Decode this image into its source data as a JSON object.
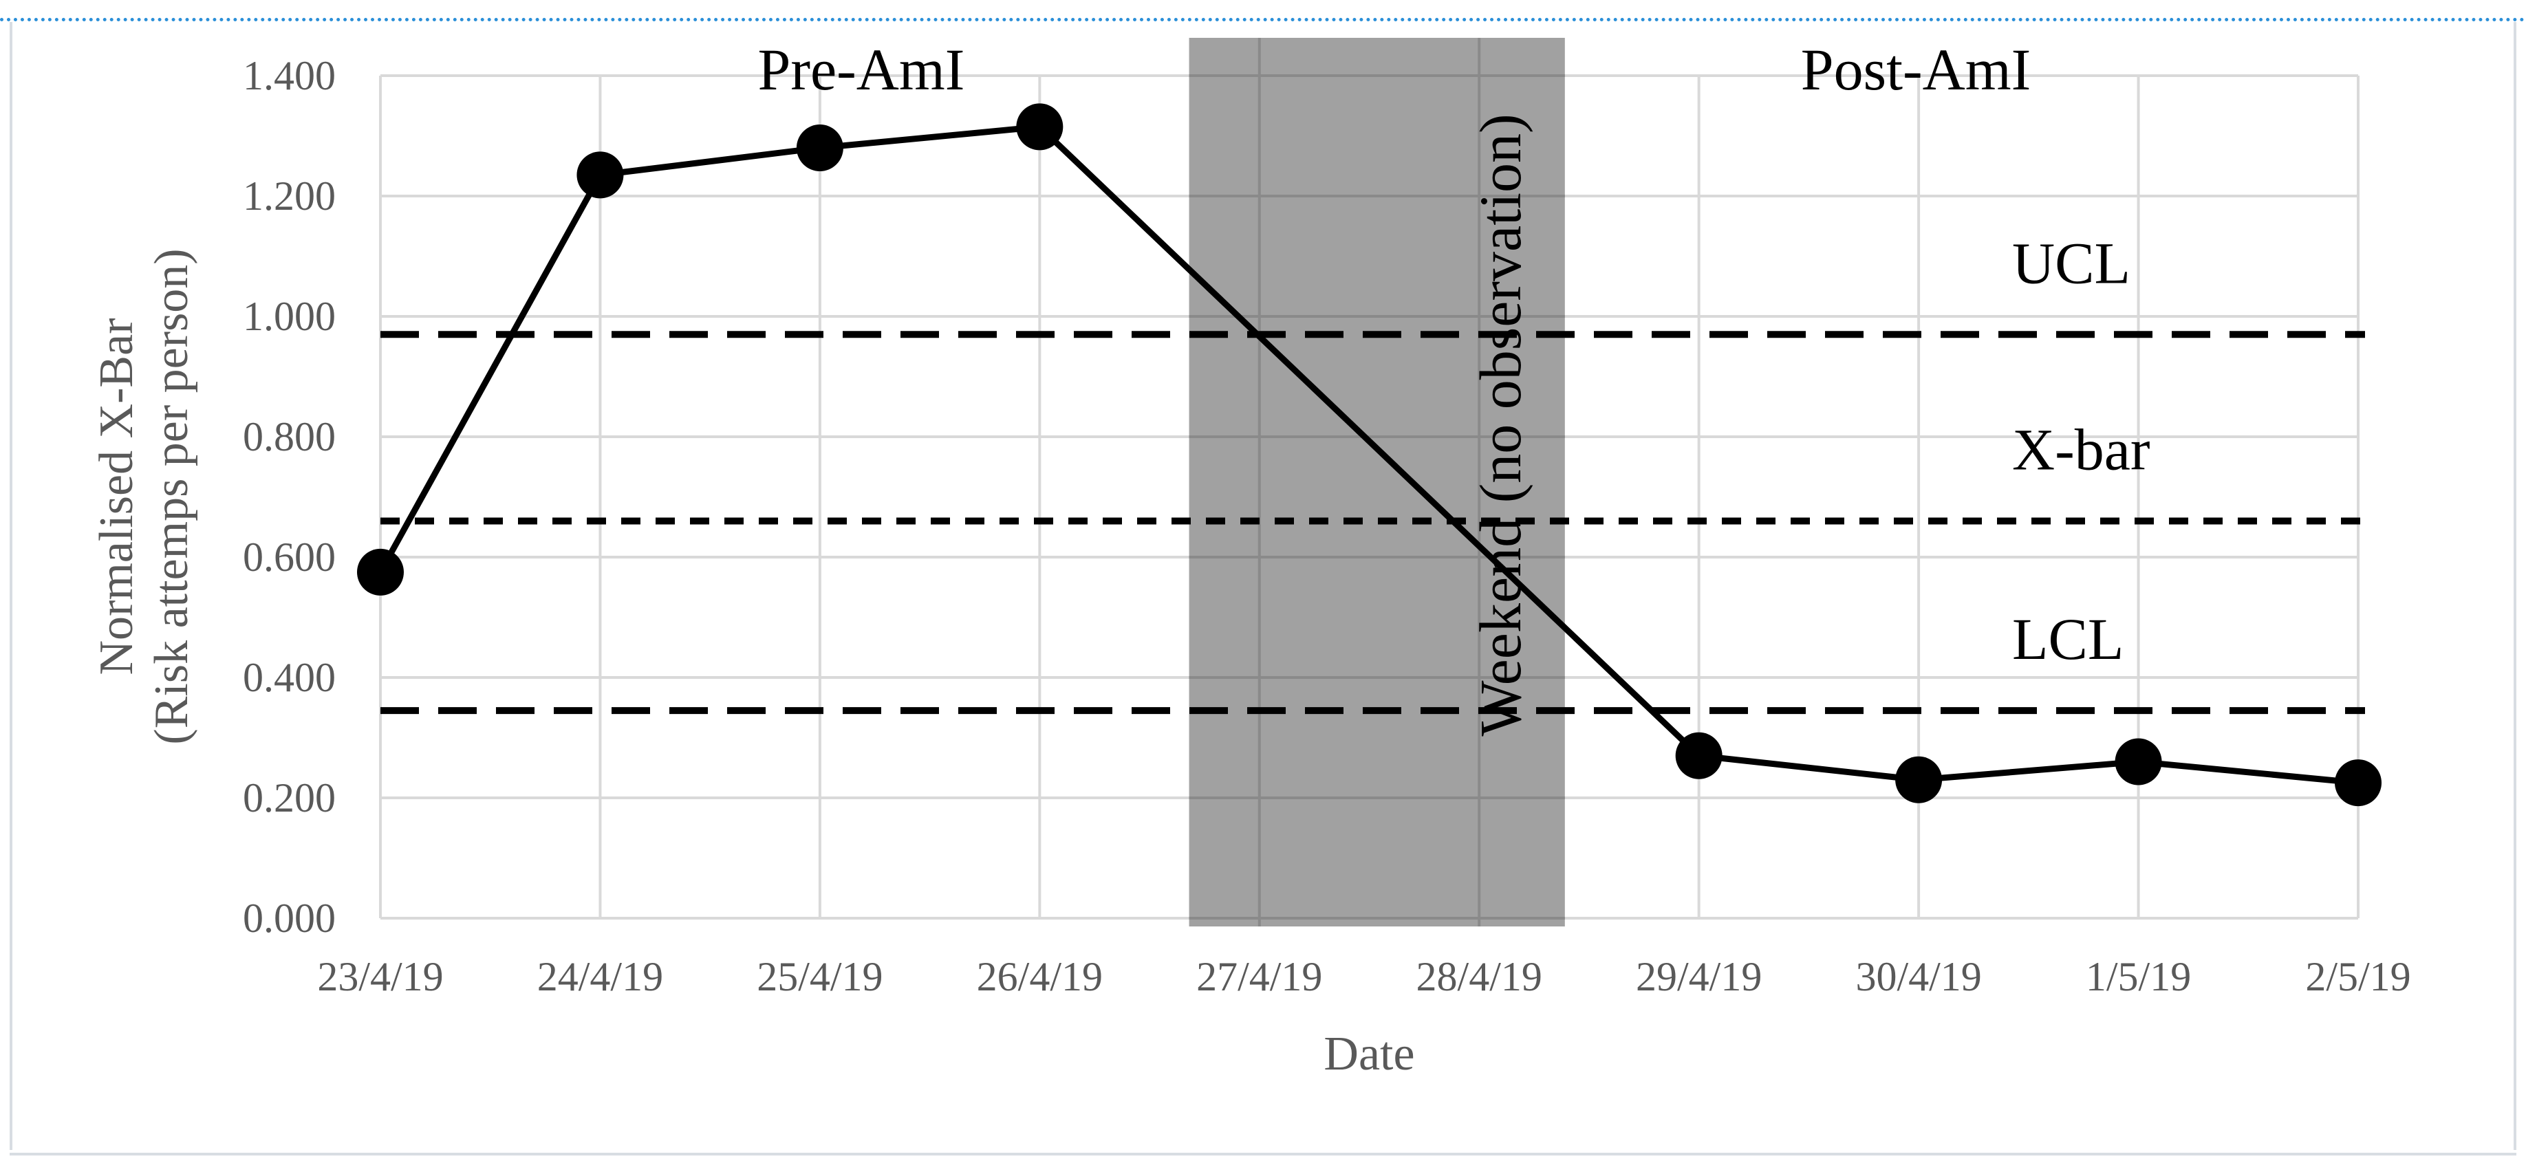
{
  "chart_data": {
    "type": "line",
    "xlabel": "Date",
    "ylabel_lines": [
      "Normalised X-Bar",
      "(Risk attemps per person)"
    ],
    "categories": [
      "23/4/19",
      "24/4/19",
      "25/4/19",
      "26/4/19",
      "27/4/19",
      "28/4/19",
      "29/4/19",
      "30/4/19",
      "1/5/19",
      "2/5/19"
    ],
    "yticks": [
      "0.000",
      "0.200",
      "0.400",
      "0.600",
      "0.800",
      "1.000",
      "1.200",
      "1.400"
    ],
    "ylim": [
      0,
      1.4
    ],
    "series": [
      {
        "values": [
          0.575,
          1.235,
          1.28,
          1.315,
          null,
          null,
          0.27,
          0.23,
          0.26,
          0.225
        ]
      }
    ],
    "control_lines": [
      {
        "label": "UCL",
        "value": 0.97,
        "style": "long-dash"
      },
      {
        "label": "X-bar",
        "value": 0.66,
        "style": "short-dash"
      },
      {
        "label": "LCL",
        "value": 0.345,
        "style": "long-dash"
      }
    ],
    "shaded_region": {
      "label": "Weekend (no observation)",
      "from": "27/4/19",
      "to": "28/4/19"
    },
    "phase_labels": [
      "Pre-AmI",
      "Post-AmI"
    ],
    "grid": true,
    "colors": {
      "line": "#000000",
      "shade": "#999999",
      "grid": "#d9d9d9",
      "tick_text": "#595959"
    }
  }
}
